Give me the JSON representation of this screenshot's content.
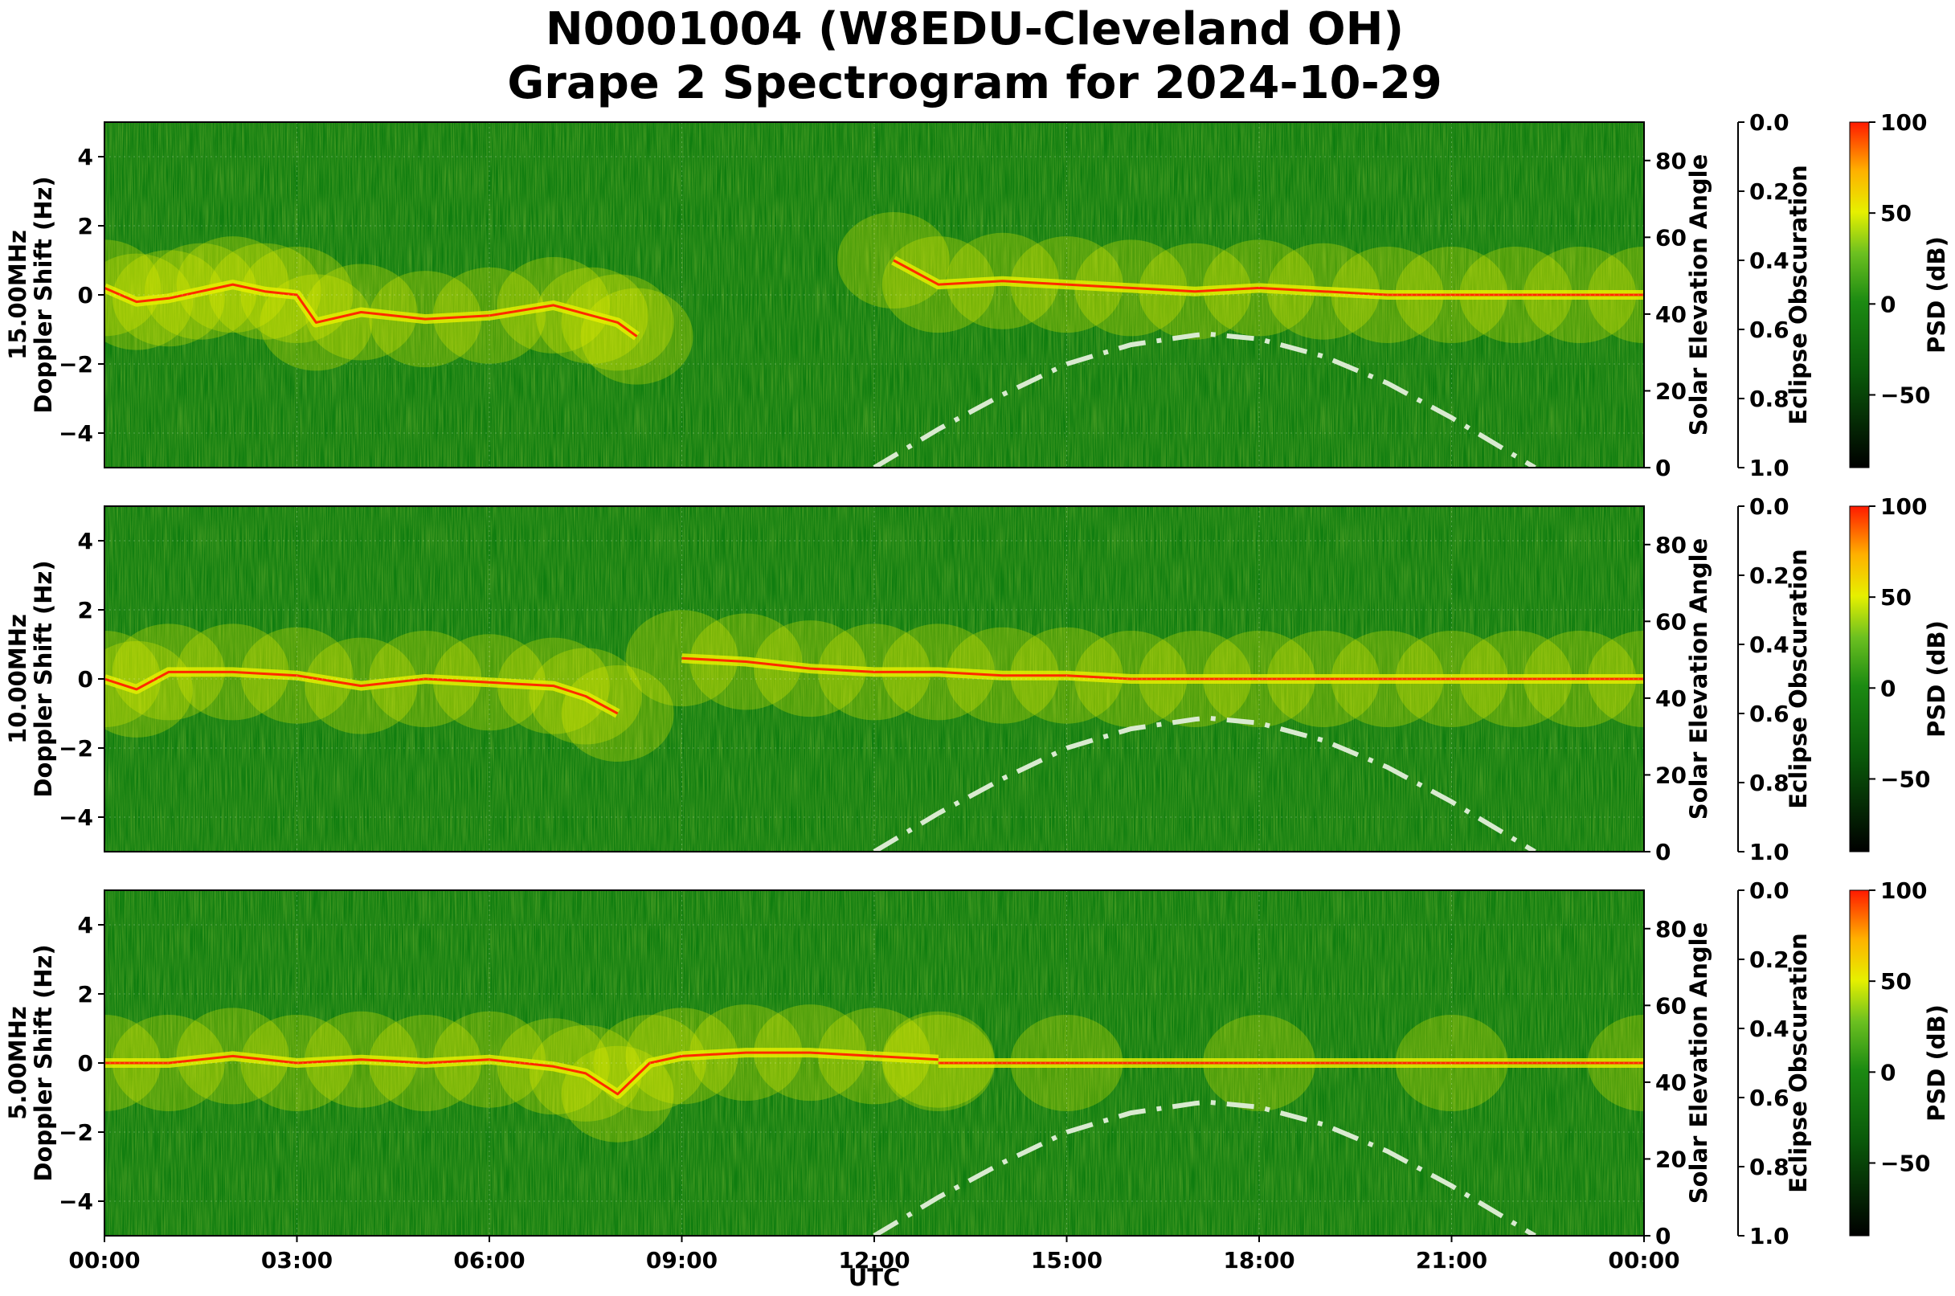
{
  "title_line1": "N0001004 (W8EDU-Cleveland OH)",
  "title_line2": "Grape 2 Spectrogram for 2024-10-29",
  "colors": {
    "background_green": "#0f7d0f",
    "signal_yellow": "#e8f000",
    "signal_red": "#ff2a00",
    "solar_curve": "#d9ead0"
  },
  "chart_data": {
    "type": "heatmap",
    "x_axis": {
      "label": "UTC",
      "tick_labels": [
        "00:00",
        "03:00",
        "06:00",
        "09:00",
        "12:00",
        "15:00",
        "18:00",
        "21:00",
        "00:00"
      ],
      "range_hours": [
        0,
        24
      ]
    },
    "panels": [
      {
        "id": "15mhz",
        "y_label_line1": "15.00MHz",
        "y_label_line2": "Doppler Shift (Hz)",
        "ylim": [
          -5,
          5
        ],
        "y_ticks": [
          "4",
          "2",
          "0",
          "−2",
          "−4"
        ],
        "solar_axis_label": "Solar Elevation Angle",
        "solar_ticks": [
          "80",
          "60",
          "40",
          "20",
          "0"
        ],
        "solar_range": [
          0,
          90
        ],
        "eclipse_axis_label": "Eclipse Obscuration",
        "eclipse_ticks": [
          "0.0",
          "0.2",
          "0.4",
          "0.6",
          "0.8",
          "1.0"
        ],
        "colorbar_label": "PSD (dB)",
        "colorbar_ticks": [
          "100",
          "50",
          "0",
          "−50"
        ],
        "colorbar_range": [
          -90,
          100
        ],
        "carrier_trace": {
          "x_hours": [
            0.0,
            0.5,
            1.0,
            1.5,
            2.0,
            2.5,
            3.0,
            3.3,
            4.0,
            5.0,
            6.0,
            7.0,
            7.6,
            8.0,
            8.3
          ],
          "doppler_hz": [
            0.2,
            -0.2,
            -0.1,
            0.1,
            0.3,
            0.1,
            0.0,
            -0.8,
            -0.5,
            -0.7,
            -0.6,
            -0.3,
            -0.6,
            -0.8,
            -1.2
          ]
        },
        "carrier_trace_2": {
          "x_hours": [
            12.3,
            13.0,
            14.0,
            15.0,
            16.0,
            17.0,
            18.0,
            19.0,
            20.0,
            21.0,
            22.0,
            23.0,
            24.0
          ],
          "doppler_hz": [
            1.0,
            0.3,
            0.4,
            0.3,
            0.2,
            0.1,
            0.2,
            0.1,
            0.0,
            0.0,
            0.0,
            0.0,
            0.0
          ]
        }
      },
      {
        "id": "10mhz",
        "y_label_line1": "10.00MHz",
        "y_label_line2": "Doppler Shift (Hz)",
        "ylim": [
          -5,
          5
        ],
        "y_ticks": [
          "4",
          "2",
          "0",
          "−2",
          "−4"
        ],
        "solar_axis_label": "Solar Elevation Angle",
        "solar_ticks": [
          "80",
          "60",
          "40",
          "20",
          "0"
        ],
        "solar_range": [
          0,
          90
        ],
        "eclipse_axis_label": "Eclipse Obscuration",
        "eclipse_ticks": [
          "0.0",
          "0.2",
          "0.4",
          "0.6",
          "0.8",
          "1.0"
        ],
        "colorbar_label": "PSD (dB)",
        "colorbar_ticks": [
          "100",
          "50",
          "0",
          "−50"
        ],
        "colorbar_range": [
          -90,
          100
        ],
        "carrier_trace": {
          "x_hours": [
            0.0,
            0.5,
            1.0,
            2.0,
            3.0,
            4.0,
            5.0,
            6.0,
            7.0,
            7.5,
            8.0
          ],
          "doppler_hz": [
            0.0,
            -0.3,
            0.2,
            0.2,
            0.1,
            -0.2,
            0.0,
            -0.1,
            -0.2,
            -0.5,
            -1.0
          ]
        },
        "carrier_trace_2": {
          "x_hours": [
            9.0,
            10.0,
            11.0,
            12.0,
            13.0,
            14.0,
            15.0,
            16.0,
            17.0,
            18.0,
            19.0,
            20.0,
            21.0,
            22.0,
            23.0,
            24.0
          ],
          "doppler_hz": [
            0.6,
            0.5,
            0.3,
            0.2,
            0.2,
            0.1,
            0.1,
            0.0,
            0.0,
            0.0,
            0.0,
            0.0,
            0.0,
            0.0,
            0.0,
            0.0
          ]
        }
      },
      {
        "id": "5mhz",
        "y_label_line1": "5.00MHz",
        "y_label_line2": "Doppler Shift (Hz)",
        "ylim": [
          -5,
          5
        ],
        "y_ticks": [
          "4",
          "2",
          "0",
          "−2",
          "−4"
        ],
        "solar_axis_label": "Solar Elevation Angle",
        "solar_ticks": [
          "80",
          "60",
          "40",
          "20",
          "0"
        ],
        "solar_range": [
          0,
          90
        ],
        "eclipse_axis_label": "Eclipse Obscuration",
        "eclipse_ticks": [
          "0.0",
          "0.2",
          "0.4",
          "0.6",
          "0.8",
          "1.0"
        ],
        "colorbar_label": "PSD (dB)",
        "colorbar_ticks": [
          "100",
          "50",
          "0",
          "−50"
        ],
        "colorbar_range": [
          -90,
          100
        ],
        "carrier_trace": {
          "x_hours": [
            0.0,
            1.0,
            2.0,
            3.0,
            4.0,
            5.0,
            6.0,
            7.0,
            7.5,
            8.0,
            8.5,
            9.0,
            10.0,
            11.0,
            12.0,
            13.0
          ],
          "doppler_hz": [
            0.0,
            0.0,
            0.2,
            0.0,
            0.1,
            0.0,
            0.1,
            -0.1,
            -0.3,
            -0.9,
            0.0,
            0.2,
            0.3,
            0.3,
            0.2,
            0.1
          ]
        },
        "carrier_trace_2": {
          "x_hours": [
            13.0,
            15.0,
            18.0,
            21.0,
            24.0
          ],
          "doppler_hz": [
            0.0,
            0.0,
            0.0,
            0.0,
            0.0
          ]
        }
      }
    ],
    "solar_elevation_curve": {
      "x_hours": [
        12.0,
        13.0,
        14.0,
        15.0,
        16.0,
        17.0,
        17.2,
        18.0,
        19.0,
        20.0,
        21.0,
        22.0,
        22.3
      ],
      "elevation_deg": [
        0,
        10,
        19,
        27,
        32,
        34.5,
        34.8,
        33.5,
        29,
        22,
        13,
        3,
        0
      ]
    }
  }
}
